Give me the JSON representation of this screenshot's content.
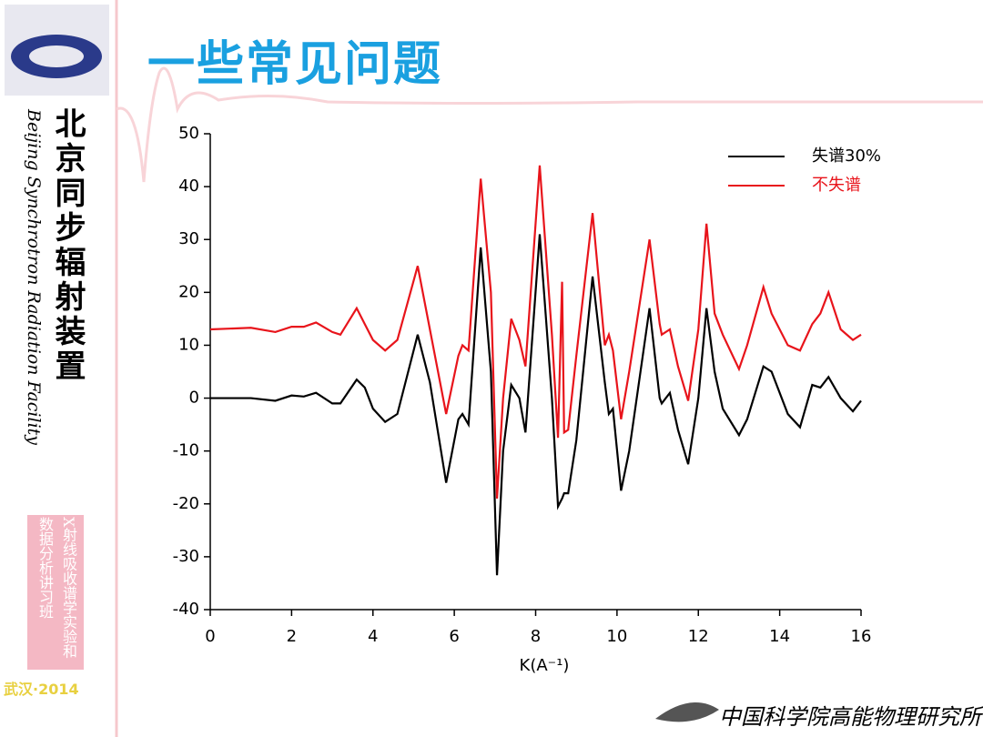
{
  "title": "一些常见问题",
  "sidebar_cn": "北京同步辐射装置",
  "sidebar_en": "Beijing Synchrotron Radiation Facility",
  "course": "X射线吸收谱学实验和数据分析讲习班",
  "badge": "武汉·2014",
  "institute": "中国科学院高能物理研究所",
  "chart_data": {
    "type": "line",
    "xlabel": "K(A⁻¹)",
    "x": [
      0,
      1,
      1.6,
      2,
      2.3,
      2.6,
      3,
      3.2,
      3.6,
      3.8,
      4,
      4.3,
      4.6,
      5.1,
      5.4,
      5.8,
      6.1,
      6.2,
      6.35,
      6.65,
      6.9,
      7.05,
      7.2,
      7.4,
      7.6,
      7.75,
      8.1,
      8.4,
      8.55,
      8.65,
      8.7,
      8.8,
      9.0,
      9.4,
      9.7,
      9.8,
      9.9,
      10.1,
      10.3,
      10.8,
      11.05,
      11.1,
      11.3,
      11.5,
      11.75,
      12.0,
      12.2,
      12.4,
      12.6,
      13.0,
      13.2,
      13.6,
      13.8,
      14.2,
      14.5,
      14.8,
      15.0,
      15.2,
      15.5,
      15.8,
      16.0
    ],
    "series": [
      {
        "name": "失谱30%",
        "color": "#000000",
        "values": [
          0,
          0,
          -0.5,
          0.5,
          0.3,
          1,
          -1,
          -1,
          3.5,
          2,
          -2,
          -4.5,
          -3,
          12,
          3,
          -16,
          -4,
          -3,
          -5,
          28.5,
          5,
          -33.5,
          -10,
          2.5,
          0,
          -6.5,
          31,
          0,
          -20.5,
          -19,
          -18,
          -18,
          -8,
          23,
          3,
          -3,
          -2,
          -17.5,
          -10,
          17,
          0,
          -1,
          1,
          -6,
          -12.5,
          0,
          17,
          5,
          -2,
          -7,
          -4,
          6,
          5,
          -3,
          -5.5,
          2.5,
          2,
          4,
          0,
          -2.5,
          -0.5
        ]
      },
      {
        "name": "不失谱",
        "color": "#e8141b",
        "values": [
          13,
          13.3,
          12.5,
          13.5,
          13.5,
          14.3,
          12.5,
          12,
          17,
          14,
          11,
          9,
          11,
          25,
          13,
          -3,
          8,
          10,
          9,
          41.5,
          20,
          -19,
          0,
          15,
          11,
          6,
          44,
          12,
          -7.5,
          22,
          -6.5,
          -6,
          8,
          35,
          10,
          12,
          9,
          -4,
          5,
          30,
          14,
          12,
          13,
          6,
          -0.5,
          13,
          33,
          16,
          12,
          5.5,
          10,
          21,
          16,
          10,
          9,
          14,
          16,
          20,
          13,
          11,
          12
        ]
      }
    ],
    "xlim": [
      0,
      16
    ],
    "xticks": [
      0,
      2,
      4,
      6,
      8,
      10,
      12,
      14,
      16
    ],
    "ylim": [
      -40,
      50
    ],
    "yticks": [
      -40,
      -30,
      -20,
      -10,
      0,
      10,
      20,
      30,
      40,
      50
    ],
    "legend": "top-right"
  }
}
